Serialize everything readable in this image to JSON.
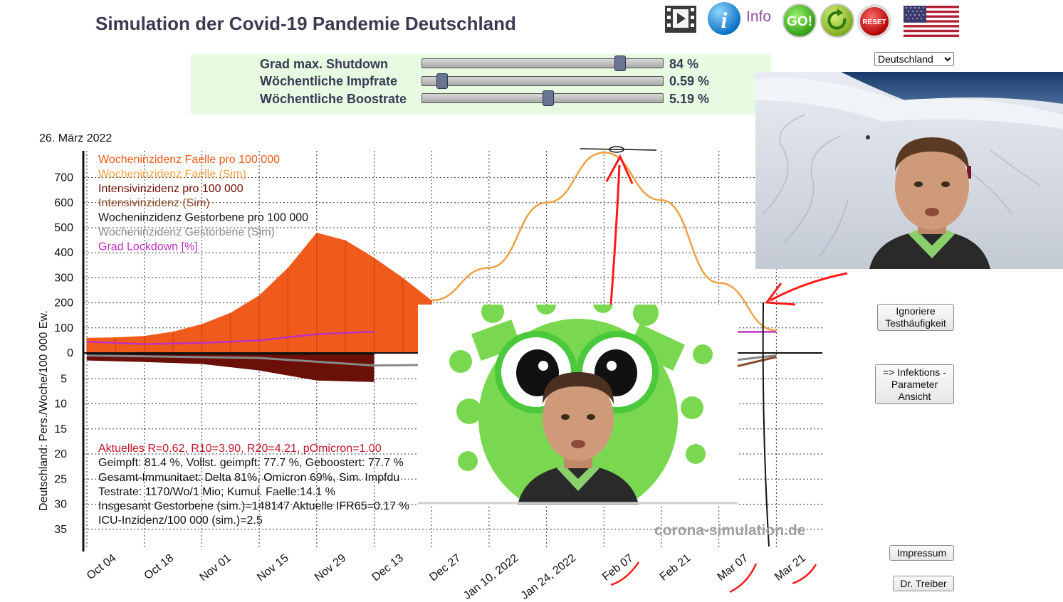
{
  "title": "Simulation der Covid-19 Pandemie Deutschland",
  "toolbar": {
    "info_label": "Info",
    "go_label": "GO!",
    "reset_label": "RESET"
  },
  "sliders": [
    {
      "label": "Grad max. Shutdown",
      "value": "84 %",
      "fraction": 0.82
    },
    {
      "label": "Wöchentliche Impfrate",
      "value": "0.59 %",
      "fraction": 0.08
    },
    {
      "label": "Wöchentliche Boostrate",
      "value": "5.19 %",
      "fraction": 0.52
    }
  ],
  "region_select": {
    "selected": "Deutschland",
    "options": [
      "Deutschland"
    ]
  },
  "date": "26. März 2022",
  "chart_data": {
    "type": "line",
    "title": "",
    "ylabel": "Deutschland: Pers./Woche/100 000 Ew.",
    "yticks_upper": [
      "700",
      "600",
      "500",
      "400",
      "300",
      "200",
      "100",
      "0"
    ],
    "yticks_lower": [
      "5",
      "10",
      "15",
      "20",
      "25",
      "30",
      "35"
    ],
    "x_categories": [
      "Oct 04",
      "Oct 18",
      "Nov 01",
      "Nov 15",
      "Nov 29",
      "Dec 13",
      "Dec 27",
      "Jan 10, 2022",
      "Jan 24, 2022",
      "Feb 07",
      "Feb 21",
      "Mar 07",
      "Mar 21"
    ],
    "legend": [
      {
        "name": "Wocheninzidenz Faelle pro 100 000",
        "color": "#f05a1a"
      },
      {
        "name": "Wocheninzidenz Faelle (Sim)",
        "color": "#f0a040"
      },
      {
        "name": "Intensivinzidenz pro 100 000",
        "color": "#6a1008"
      },
      {
        "name": "Intensivinzidenz (Sim)",
        "color": "#8a4a28"
      },
      {
        "name": "Wocheninzidenz Gestorbene pro 100 000",
        "color": "#111111"
      },
      {
        "name": "Wocheninzidenz Gestorbene (Sim)",
        "color": "#888888"
      },
      {
        "name": "Grad Lockdown [%]",
        "color": "#c030c0"
      }
    ],
    "series": [
      {
        "name": "Wocheninzidenz Faelle pro 100 000",
        "x": [
          "Oct 04",
          "Oct 11",
          "Oct 18",
          "Oct 25",
          "Nov 01",
          "Nov 08",
          "Nov 15",
          "Nov 22",
          "Nov 29",
          "Dec 06",
          "Dec 13",
          "Dec 20",
          "Dec 27"
        ],
        "values": [
          60,
          62,
          68,
          85,
          115,
          160,
          230,
          340,
          480,
          450,
          380,
          300,
          210
        ]
      },
      {
        "name": "Wocheninzidenz Faelle (Sim)",
        "x": [
          "Dec 27",
          "Jan 10, 2022",
          "Jan 24, 2022",
          "Feb 07",
          "Feb 21",
          "Mar 07",
          "Mar 21"
        ],
        "values": [
          210,
          340,
          600,
          800,
          610,
          280,
          90
        ]
      },
      {
        "name": "Grad Lockdown [%]",
        "x": [
          "Oct 04",
          "Oct 18",
          "Nov 01",
          "Nov 15",
          "Nov 29",
          "Dec 13",
          "Mar 07",
          "Mar 21"
        ],
        "values": [
          45,
          35,
          40,
          50,
          75,
          85,
          84,
          84
        ]
      },
      {
        "name": "Intensivinzidenz pro 100 000",
        "x": [
          "Oct 04",
          "Oct 18",
          "Nov 01",
          "Nov 15",
          "Nov 29",
          "Dec 13"
        ],
        "values": [
          1.5,
          1.8,
          2.2,
          3.5,
          5.5,
          5.8
        ]
      },
      {
        "name": "Intensivinzidenz (Sim)",
        "x": [
          "Mar 07",
          "Mar 21"
        ],
        "values": [
          3.5,
          0.8
        ]
      },
      {
        "name": "Wocheninzidenz Gestorbene (Sim)",
        "x": [
          "Oct 04",
          "Nov 15",
          "Dec 13",
          "Mar 07",
          "Mar 21"
        ],
        "values": [
          0.5,
          1.0,
          2.5,
          1.8,
          0.5
        ]
      },
      {
        "name": "Wocheninzidenz Gestorbene pro 100 000",
        "x": [
          "Oct 04",
          "Dec 13"
        ],
        "values": [
          0.2,
          0.2
        ]
      }
    ],
    "grid": true,
    "legend_position": "top-left"
  },
  "stats": [
    "Aktuelles R=0.62, R10=3.90, R20=4.21, pOmicron=1.00",
    "Geimpft: 81.4 %, Vollst. geimpft: 77.7 %, Geboostert: 77.7 %",
    "Gesamt-Immunitaet: Delta 81%, Omicron 69%, Sim. Impfdu",
    "Testrate: 1170/Wo/1 Mio; Kumul. Faelle:14.1 %",
    "Insgesamt Gestorbene (sim.)=148147 Aktuelle IFR65=0.17 %",
    "ICU-Inzidenz/100 000 (sim.)=2.5"
  ],
  "watermark": "corona-simulation.de",
  "buttons": {
    "ignore_test_line1": "Ignoriere",
    "ignore_test_line2": "Testhäufigkeit",
    "infection_line1": "=> Infektions -",
    "infection_line2": "Parameter",
    "infection_line3": "Ansicht",
    "impressum": "Impressum",
    "author": "Dr. Treiber"
  },
  "colors": {
    "accent": "#8e4a9e",
    "cases": "#f05a1a",
    "sim_cases": "#f0a040",
    "lockdown": "#c030c0",
    "annotation": "#ff1a1a"
  }
}
